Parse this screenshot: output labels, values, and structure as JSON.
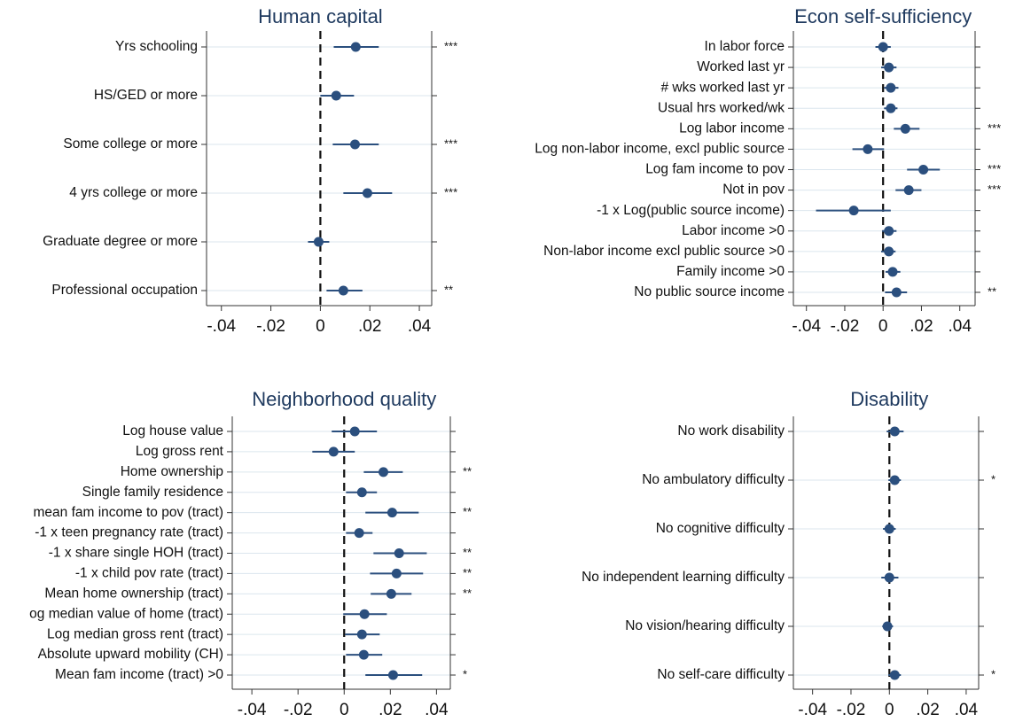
{
  "chart_data": [
    {
      "type": "coefplot",
      "title": "Human capital",
      "categories": [
        "Yrs schooling",
        "HS/GED or more",
        "Some college or more",
        "4 yrs college or more",
        "Graduate degree or more",
        "Professional occupation"
      ],
      "values": [
        0.0143,
        0.0064,
        0.014,
        0.019,
        -0.0007,
        0.0093
      ],
      "lower": [
        0.0054,
        0,
        0.005,
        0.0093,
        -0.005,
        0.0025
      ],
      "upper": [
        0.0236,
        0.0136,
        0.0236,
        0.029,
        0.0036,
        0.017
      ],
      "annotations": [
        "***",
        null,
        "***",
        "***",
        null,
        "**"
      ],
      "color": "#2b4f7e",
      "refline": 0,
      "grid": true,
      "xlim": [
        -0.046,
        0.045
      ],
      "xticks": [
        {
          "value": -0.04,
          "label": "-.04"
        },
        {
          "value": -0.02,
          "label": "-.02"
        },
        0,
        {
          "value": 0.02,
          "label": ".02"
        },
        {
          "value": 0.04,
          "label": ".04"
        }
      ]
    },
    {
      "type": "coefplot",
      "title": "Econ self-sufficiency",
      "categories": [
        "In labor force",
        "Worked last yr",
        "# wks worked last yr",
        "Usual hrs worked/wk",
        "Log labor income",
        "Log non-labor income, excl public source",
        "Log fam income to pov",
        "Not in pov",
        "-1 x Log(public source income)",
        "Labor income >0",
        "Non-labor income excl public source >0",
        "Family income >0",
        "No public source income"
      ],
      "values": [
        0,
        0.003,
        0.004,
        0.004,
        0.0116,
        -0.008,
        0.021,
        0.0134,
        -0.0153,
        0.003,
        0.003,
        0.005,
        0.007
      ],
      "lower": [
        -0.004,
        -0.001,
        0.0005,
        0.0005,
        0.0056,
        -0.016,
        0.0125,
        0.0065,
        -0.035,
        -0.0005,
        -0.001,
        0.0013,
        0.001
      ],
      "upper": [
        0.004,
        0.007,
        0.008,
        0.0075,
        0.019,
        0.0005,
        0.0296,
        0.02,
        0.004,
        0.007,
        0.0065,
        0.009,
        0.0125
      ],
      "annotations": [
        null,
        null,
        null,
        null,
        "***",
        null,
        "***",
        "***",
        null,
        null,
        null,
        null,
        "**"
      ],
      "color": "#2b4f7e",
      "refline": 0,
      "grid": true,
      "xlim": [
        -0.0468,
        0.048
      ],
      "xticks": [
        {
          "value": -0.04,
          "label": "-.04"
        },
        {
          "value": -0.02,
          "label": "-.02"
        },
        0,
        {
          "value": 0.02,
          "label": ".02"
        },
        {
          "value": 0.04,
          "label": ".04"
        }
      ]
    },
    {
      "type": "coefplot",
      "title": "Neighborhood quality",
      "categories": [
        "Log house value",
        "Log gross rent",
        "Home ownership",
        "Single family residence",
        "mean fam income to pov (tract)",
        "-1 x teen pregnancy rate (tract)",
        "-1 x share single HOH (tract)",
        "-1 x child pov rate (tract)",
        "Mean home ownership (tract)",
        "og median value of home (tract)",
        "Log median gross rent (tract)",
        "Absolute upward mobility (CH)",
        "Mean fam income (tract) >0"
      ],
      "values": [
        0.0046,
        -0.0046,
        0.017,
        0.0077,
        0.0208,
        0.0065,
        0.0238,
        0.0227,
        0.0204,
        0.0088,
        0.0077,
        0.0085,
        0.0212
      ],
      "lower": [
        -0.0054,
        -0.0138,
        0.0085,
        0.0008,
        0.0092,
        0.0008,
        0.0127,
        0.0112,
        0.0115,
        -0.0004,
        0.0004,
        0.0008,
        0.0092
      ],
      "upper": [
        0.0142,
        0.0046,
        0.0254,
        0.0142,
        0.0323,
        0.0123,
        0.0358,
        0.0342,
        0.0292,
        0.0185,
        0.0154,
        0.0165,
        0.0338
      ],
      "annotations": [
        null,
        null,
        "**",
        null,
        "**",
        null,
        "**",
        "**",
        "**",
        null,
        null,
        null,
        "*"
      ],
      "color": "#2b4f7e",
      "refline": 0,
      "grid": true,
      "xlim": [
        -0.0485,
        0.046
      ],
      "xticks": [
        {
          "value": -0.04,
          "label": "-.04"
        },
        {
          "value": -0.02,
          "label": "-.02"
        },
        0,
        {
          "value": 0.02,
          "label": ".02"
        },
        {
          "value": 0.04,
          "label": ".04"
        }
      ]
    },
    {
      "type": "coefplot",
      "title": "Disability",
      "categories": [
        "No work disability",
        "No ambulatory difficulty",
        "No cognitive difficulty",
        "No independent learning difficulty",
        "No vision/hearing difficulty",
        "No self-care difficulty"
      ],
      "values": [
        0.0028,
        0.0028,
        0,
        0,
        -0.001,
        0.0028
      ],
      "lower": [
        -0.0014,
        -0.0005,
        -0.0033,
        -0.0042,
        -0.0037,
        -0.0005
      ],
      "upper": [
        0.0074,
        0.006,
        0.0033,
        0.0047,
        0.0019,
        0.006
      ],
      "annotations": [
        null,
        "*",
        null,
        null,
        null,
        "*"
      ],
      "color": "#2b4f7e",
      "refline": 0,
      "grid": true,
      "xlim": [
        -0.05,
        0.0465
      ],
      "xticks": [
        {
          "value": -0.04,
          "label": "-.04"
        },
        {
          "value": -0.02,
          "label": "-.02"
        },
        0,
        {
          "value": 0.02,
          "label": ".02"
        },
        {
          "value": 0.04,
          "label": ".04"
        }
      ]
    }
  ]
}
